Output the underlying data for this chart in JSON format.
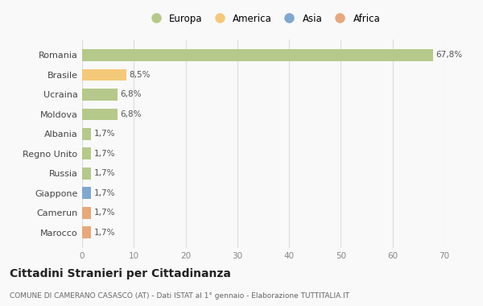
{
  "countries": [
    "Romania",
    "Brasile",
    "Ucraina",
    "Moldova",
    "Albania",
    "Regno Unito",
    "Russia",
    "Giappone",
    "Camerun",
    "Marocco"
  ],
  "values": [
    67.8,
    8.5,
    6.8,
    6.8,
    1.7,
    1.7,
    1.7,
    1.7,
    1.7,
    1.7
  ],
  "labels": [
    "67,8%",
    "8,5%",
    "6,8%",
    "6,8%",
    "1,7%",
    "1,7%",
    "1,7%",
    "1,7%",
    "1,7%",
    "1,7%"
  ],
  "colors": [
    "#b5c98a",
    "#f5c97a",
    "#b5c98a",
    "#b5c98a",
    "#b5c98a",
    "#b5c98a",
    "#b5c98a",
    "#7fa8d1",
    "#e8a87c",
    "#e8a87c"
  ],
  "legend_labels": [
    "Europa",
    "America",
    "Asia",
    "Africa"
  ],
  "legend_colors": [
    "#b5c98a",
    "#f5c97a",
    "#7fa8d1",
    "#e8a87c"
  ],
  "xlim": [
    0,
    70
  ],
  "xticks": [
    0,
    10,
    20,
    30,
    40,
    50,
    60,
    70
  ],
  "title": "Cittadini Stranieri per Cittadinanza",
  "subtitle": "COMUNE DI CAMERANO CASASCO (AT) - Dati ISTAT al 1° gennaio - Elaborazione TUTTITALIA.IT",
  "bg_color": "#f9f9f9",
  "grid_color": "#dddddd",
  "bar_height": 0.6
}
